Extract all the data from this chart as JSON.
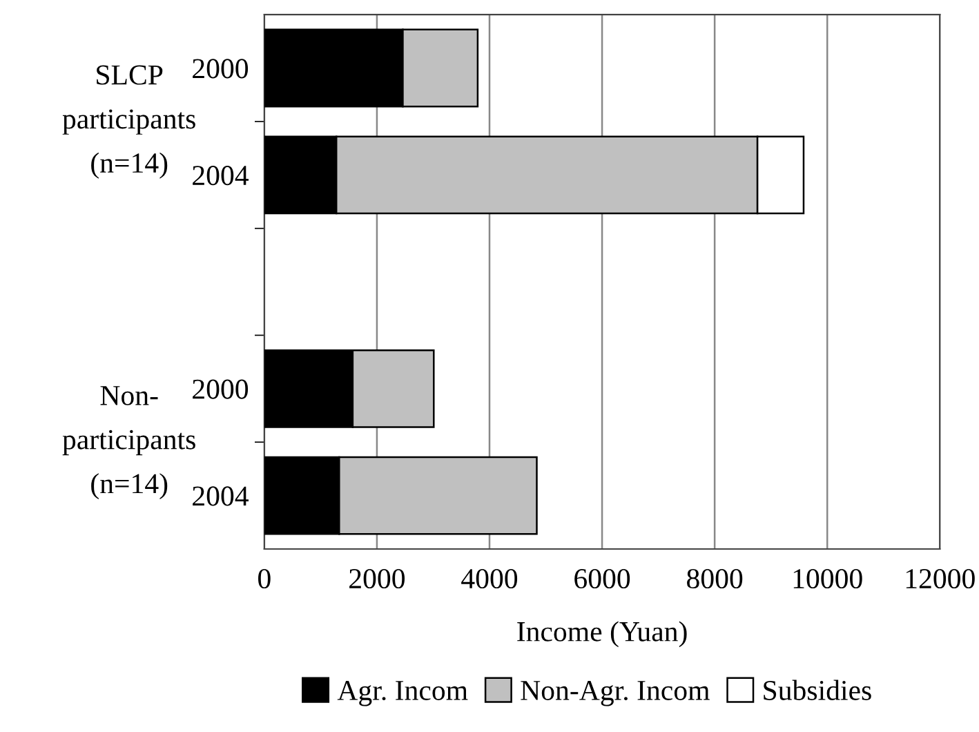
{
  "chart_data": {
    "type": "bar",
    "orientation": "horizontal",
    "stacked": true,
    "categories": [
      "2000",
      "2004",
      null,
      "2000",
      "2004"
    ],
    "series": [
      {
        "name": "Agr. Incom",
        "color": "#000000",
        "values": [
          2460,
          1280,
          null,
          1570,
          1330
        ]
      },
      {
        "name": "Non-Agr. Incom",
        "color": "#c0c0c0",
        "values": [
          1330,
          7480,
          null,
          1440,
          3510
        ]
      },
      {
        "name": "Subsidies",
        "color": "#ffffff",
        "values": [
          null,
          820,
          null,
          null,
          null
        ]
      }
    ],
    "xlabel": "Income (Yuan)",
    "xlim": [
      0,
      12000
    ],
    "xticks": [
      0,
      2000,
      4000,
      6000,
      8000,
      10000,
      12000
    ],
    "grid": "x",
    "legend": "bottom",
    "annotations": [
      "SLCP\nparticipants\n(n=14)",
      "Non-\nparticipants\n(n=14)"
    ]
  }
}
